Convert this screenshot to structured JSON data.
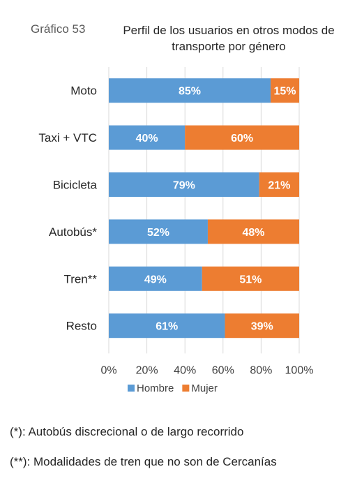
{
  "figure_label": "Gráfico 53",
  "title": "Perfil de los usuarios en otros modos de transporte por género",
  "chart_data": {
    "type": "bar",
    "orientation": "horizontal",
    "stacked": true,
    "categories": [
      "Moto",
      "Taxi + VTC",
      "Bicicleta",
      "Autobús*",
      "Tren**",
      "Resto"
    ],
    "series": [
      {
        "name": "Hombre",
        "values": [
          85,
          40,
          79,
          52,
          49,
          61
        ],
        "color": "#5B9BD5"
      },
      {
        "name": "Mujer",
        "values": [
          15,
          60,
          21,
          48,
          51,
          39
        ],
        "color": "#ED7D31"
      }
    ],
    "xlim": [
      0,
      100
    ],
    "xticks": [
      "0%",
      "20%",
      "40%",
      "60%",
      "80%",
      "100%"
    ],
    "value_suffix": "%",
    "grid": true,
    "legend_position": "bottom"
  },
  "notes": [
    "(*): Autobús discrecional o de largo recorrido",
    "(**): Modalidades de tren que no son de Cercanías"
  ]
}
